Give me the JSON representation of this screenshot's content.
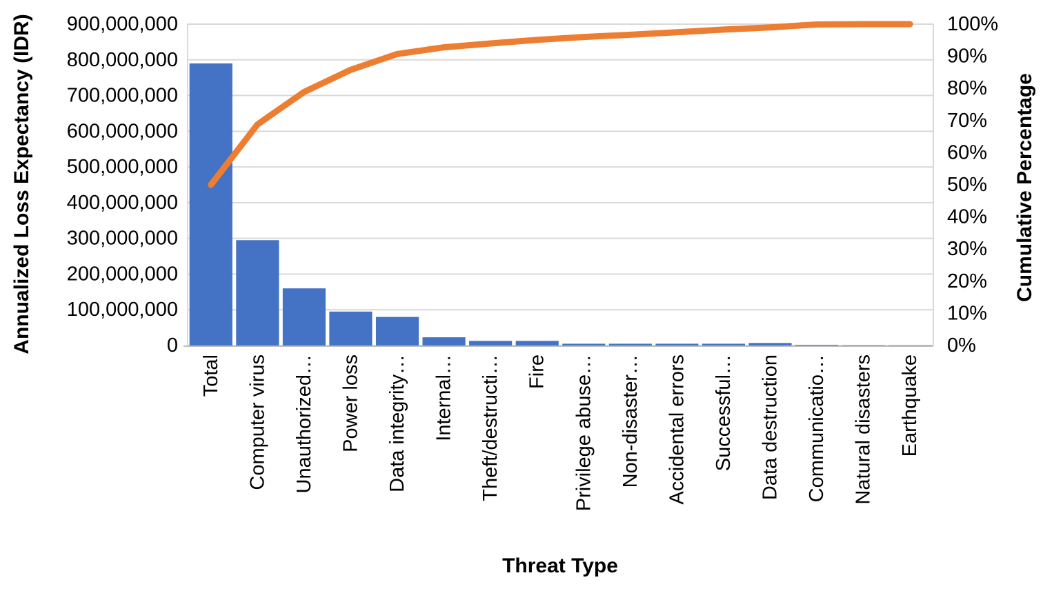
{
  "chart_data": {
    "type": "bar",
    "subtype": "pareto-combo-bar-line",
    "title": "",
    "xlabel": "Threat Type",
    "ylabel_left": "Annualized Loss Expectancy (IDR)",
    "ylabel_right": "Cumulative Percentage",
    "categories": [
      "Total",
      "Computer virus",
      "Unauthorized…",
      "Power loss",
      "Data integrity…",
      "Internal…",
      "Theft/destructi…",
      "Fire",
      "Privilege abuse…",
      "Non-disaster…",
      "Accidental errors",
      "Successful…",
      "Data destruction",
      "Communicatio…",
      "Natural disasters",
      "Earthquake"
    ],
    "series": [
      {
        "name": "Annualized Loss Expectancy (IDR)",
        "type": "bar",
        "color": "#4472C4",
        "values": [
          790000000,
          295000000,
          160000000,
          95000000,
          80000000,
          23000000,
          13000000,
          13000000,
          5000000,
          5000000,
          5000000,
          5000000,
          7000000,
          2000000,
          1000000,
          400000
        ]
      },
      {
        "name": "Cumulative Percentage",
        "type": "line",
        "color": "#ED7D31",
        "values": [
          50,
          68.8,
          78.9,
          85.8,
          90.7,
          92.8,
          94.0,
          95.1,
          96.0,
          96.7,
          97.5,
          98.3,
          99.0,
          99.9,
          100,
          100
        ]
      }
    ],
    "left_axis": {
      "min": 0,
      "max": 900000000,
      "step": 100000000,
      "tick_labels": [
        "900,000,000",
        "800,000,000",
        "700,000,000",
        "600,000,000",
        "500,000,000",
        "400,000,000",
        "300,000,000",
        "200,000,000",
        "100,000,000",
        "0"
      ]
    },
    "right_axis": {
      "min": 0,
      "max": 100,
      "step": 10,
      "tick_labels": [
        "100%",
        "90%",
        "80%",
        "70%",
        "60%",
        "50%",
        "40%",
        "30%",
        "20%",
        "10%",
        "0%"
      ]
    },
    "grid": true,
    "legend": false,
    "colors": {
      "bar": "#4472C4",
      "line": "#ED7D31",
      "gridline": "#D9D9D9",
      "axis_line": "#BFBFBF",
      "text": "#000000"
    }
  }
}
